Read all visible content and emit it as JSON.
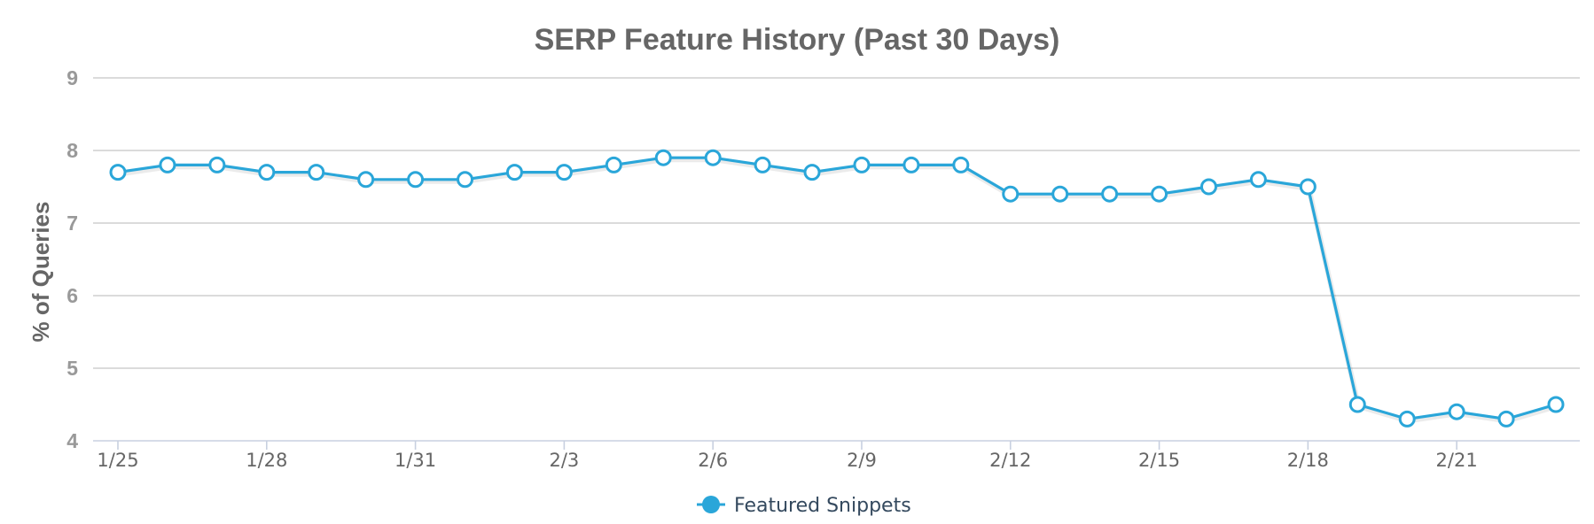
{
  "chart_data": {
    "type": "line",
    "title": "SERP Feature History (Past 30 Days)",
    "xlabel": "",
    "ylabel": "% of Queries",
    "ylim": [
      4,
      9
    ],
    "yticks": [
      "4",
      "5",
      "6",
      "7",
      "8",
      "9"
    ],
    "x": [
      "1/25",
      "1/26",
      "1/27",
      "1/28",
      "1/29",
      "1/30",
      "1/31",
      "2/1",
      "2/2",
      "2/3",
      "2/4",
      "2/5",
      "2/6",
      "2/7",
      "2/8",
      "2/9",
      "2/10",
      "2/11",
      "2/12",
      "2/13",
      "2/14",
      "2/15",
      "2/16",
      "2/17",
      "2/18",
      "2/19",
      "2/20",
      "2/21",
      "2/22",
      "2/23"
    ],
    "xticks_shown": [
      "1/25",
      "1/28",
      "1/31",
      "2/3",
      "2/6",
      "2/9",
      "2/12",
      "2/15",
      "2/18",
      "2/21"
    ],
    "series": [
      {
        "name": "Featured Snippets",
        "color": "#2aa6d9",
        "values": [
          7.7,
          7.8,
          7.8,
          7.7,
          7.7,
          7.6,
          7.6,
          7.6,
          7.7,
          7.7,
          7.8,
          7.9,
          7.9,
          7.8,
          7.7,
          7.8,
          7.8,
          7.8,
          7.4,
          7.4,
          7.4,
          7.4,
          7.5,
          7.6,
          7.5,
          4.5,
          4.3,
          4.4,
          4.3,
          4.5
        ]
      }
    ],
    "grid": true,
    "legend": "bottom-center"
  }
}
